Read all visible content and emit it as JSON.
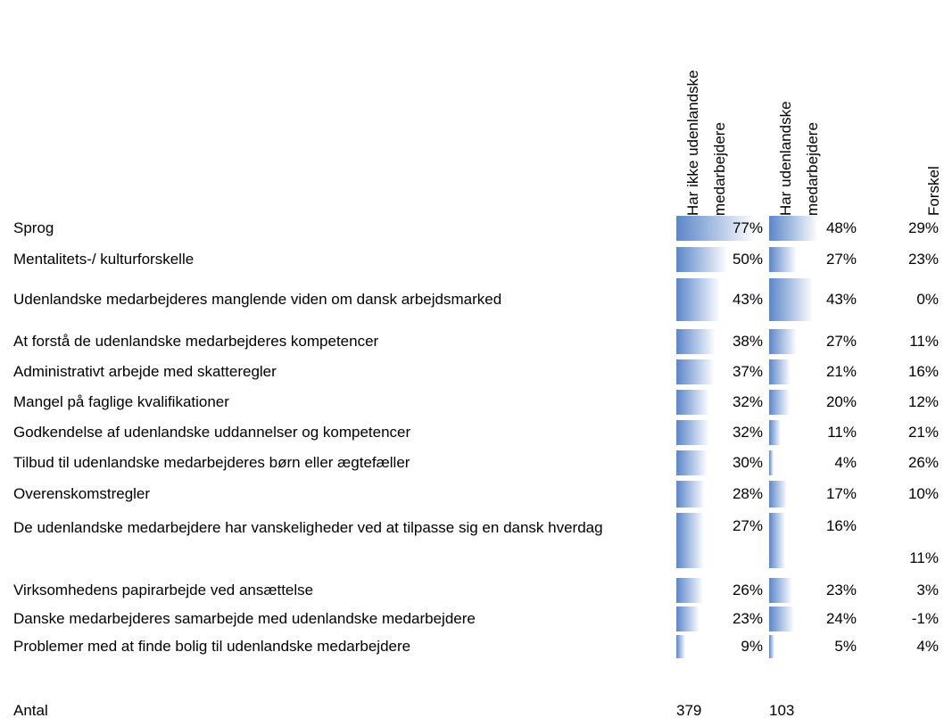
{
  "table": {
    "columns": [
      "Har ikke udenlandske medarbejdere",
      "Har udenlandske medarbejdere",
      "Forskel"
    ],
    "rows": [
      {
        "label": "Sprog",
        "values": [
          77,
          48,
          29
        ],
        "value_labels": [
          "77%",
          "48%",
          "29%"
        ]
      },
      {
        "label": "Mentalitets-/ kulturforskelle",
        "values": [
          50,
          27,
          23
        ],
        "value_labels": [
          "50%",
          "27%",
          "23%"
        ]
      },
      {
        "label": "Udenlandske medarbejderes manglende viden om dansk arbejdsmarked",
        "values": [
          43,
          43,
          0
        ],
        "value_labels": [
          "43%",
          "43%",
          "0%"
        ]
      },
      {
        "label": "At forstå de udenlandske medarbejderes kompetencer",
        "values": [
          38,
          27,
          11
        ],
        "value_labels": [
          "38%",
          "27%",
          "11%"
        ]
      },
      {
        "label": "Administrativt arbejde med skatteregler",
        "values": [
          37,
          21,
          16
        ],
        "value_labels": [
          "37%",
          "21%",
          "16%"
        ]
      },
      {
        "label": "Mangel på faglige kvalifikationer",
        "values": [
          32,
          20,
          12
        ],
        "value_labels": [
          "32%",
          "20%",
          "12%"
        ]
      },
      {
        "label": "Godkendelse af udenlandske uddannelser og kompetencer",
        "values": [
          32,
          11,
          21
        ],
        "value_labels": [
          "32%",
          "11%",
          "21%"
        ]
      },
      {
        "label": "Tilbud til udenlandske medarbejderes børn eller ægtefæller",
        "values": [
          30,
          4,
          26
        ],
        "value_labels": [
          "30%",
          "4%",
          "26%"
        ]
      },
      {
        "label": "Overenskomstregler",
        "values": [
          28,
          17,
          10
        ],
        "value_labels": [
          "28%",
          "17%",
          "10%"
        ]
      },
      {
        "label": "De udenlandske medarbejdere har vanskeligheder ved at tilpasse sig en dansk hverdag",
        "values": [
          27,
          16,
          11
        ],
        "value_labels": [
          "27%",
          "16%",
          "11%"
        ]
      },
      {
        "label": "Virksomhedens papirarbejde ved ansættelse",
        "values": [
          26,
          23,
          3
        ],
        "value_labels": [
          "26%",
          "23%",
          "3%"
        ]
      },
      {
        "label": "Danske medarbejderes samarbejde med udenlandske medarbejdere",
        "values": [
          23,
          24,
          -1
        ],
        "value_labels": [
          "23%",
          "24%",
          "-1%"
        ]
      },
      {
        "label": "Problemer med at finde bolig til udenlandske medarbejdere",
        "values": [
          9,
          5,
          4
        ],
        "value_labels": [
          "9%",
          "5%",
          "4%"
        ]
      }
    ],
    "total": {
      "label": "Antal",
      "values": [
        379,
        103
      ]
    }
  }
}
